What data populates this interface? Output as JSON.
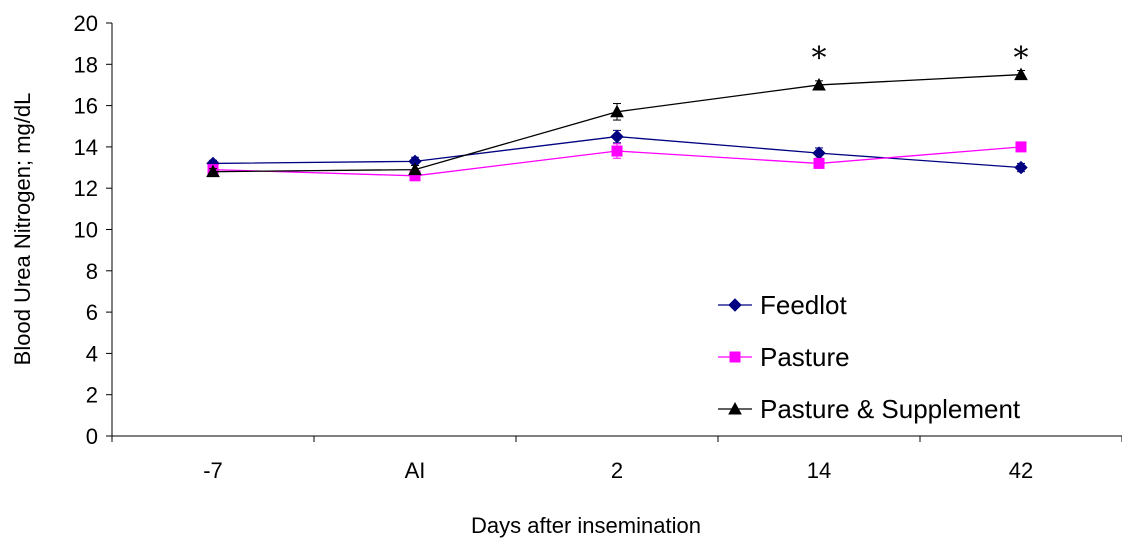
{
  "chart_data": {
    "type": "line",
    "categories": [
      "-7",
      "AI",
      "2",
      "14",
      "42"
    ],
    "xlabel": "Days after insemination",
    "ylabel": "Blood Urea Nitrogen; mg/dL",
    "ylim": [
      0,
      20
    ],
    "yticks": [
      0,
      2,
      4,
      6,
      8,
      10,
      12,
      14,
      16,
      18,
      20
    ],
    "grid": false,
    "legend_position": "bottom-right",
    "series": [
      {
        "name": "Feedlot",
        "color": "#000080",
        "marker": "diamond",
        "values": [
          13.2,
          13.3,
          14.5,
          13.7,
          13.0
        ],
        "errors": [
          0.15,
          0.2,
          0.3,
          0.25,
          0.2
        ]
      },
      {
        "name": "Pasture",
        "color": "#FF00FF",
        "marker": "square",
        "values": [
          12.9,
          12.6,
          13.8,
          13.2,
          14.0
        ],
        "errors": [
          0.15,
          0.15,
          0.35,
          0.2,
          0.2
        ]
      },
      {
        "name": "Pasture & Supplement",
        "color": "#000000",
        "marker": "triangle",
        "values": [
          12.8,
          12.9,
          15.7,
          17.0,
          17.5
        ],
        "errors": [
          0.15,
          0.2,
          0.4,
          0.2,
          0.2
        ]
      }
    ],
    "annotations": [
      {
        "category": "14",
        "text": "*"
      },
      {
        "category": "42",
        "text": "*"
      }
    ]
  }
}
